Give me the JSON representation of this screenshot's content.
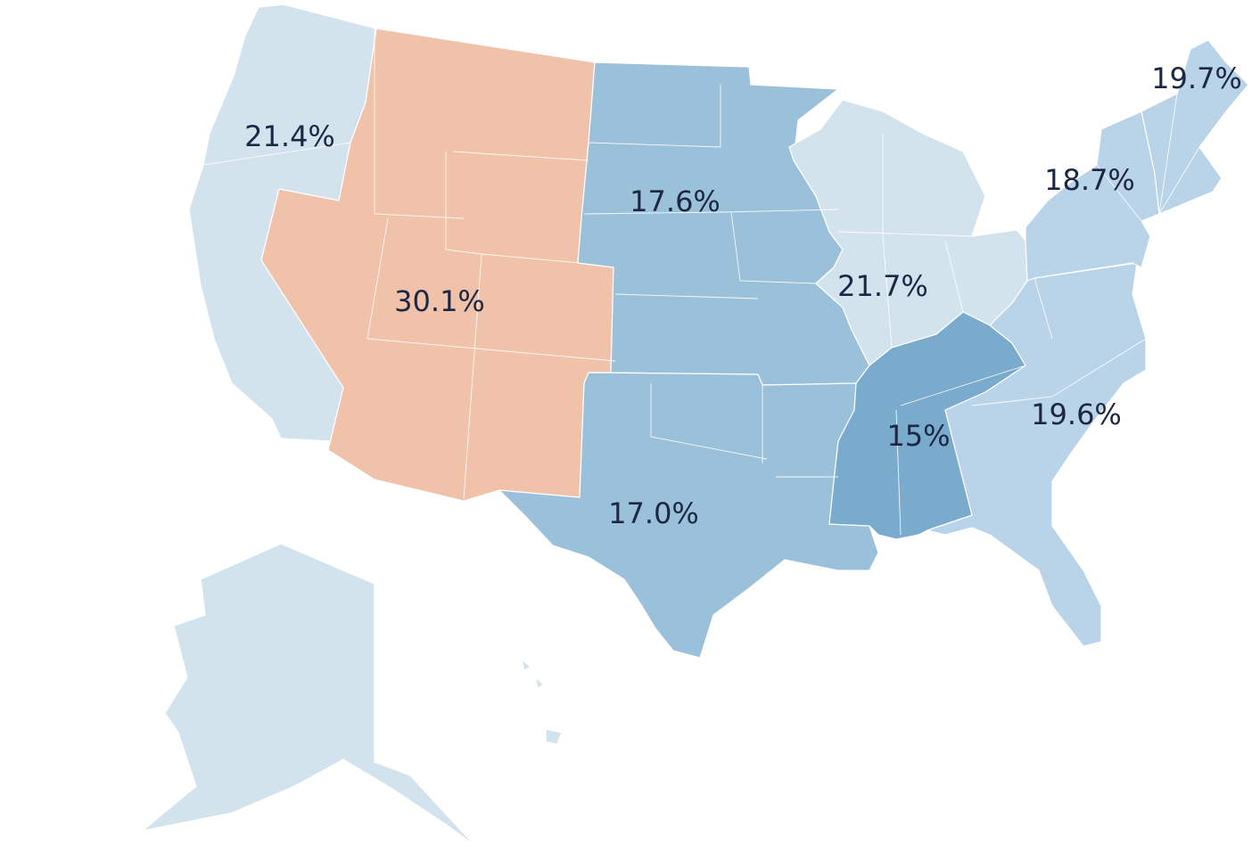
{
  "chart_data": {
    "type": "choropleth",
    "values": [
      21.4,
      30.1,
      17.6,
      17.0,
      21.7,
      15,
      19.6,
      18.7,
      19.7
    ],
    "value_labels": [
      "21.4%",
      "30.1%",
      "17.6%",
      "17.0%",
      "21.7%",
      "15%",
      "19.6%",
      "18.7%",
      "19.7%"
    ],
    "colors": [
      "#d3e3ee",
      "#efc2a9",
      "#9bc0da",
      "#9bc0da",
      "#d3e3ee",
      "#7aaacc",
      "#b9d3e8",
      "#b9d3e8",
      "#b9d3e8"
    ]
  }
}
